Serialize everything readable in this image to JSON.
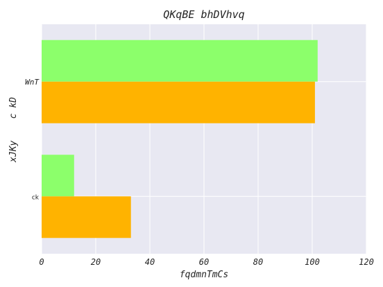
{
  "chart_data": {
    "type": "bar",
    "orientation": "horizontal",
    "title": "QKqBE bhDVhvq",
    "xlabel": "fqdmnTmCs",
    "ylabel": "xJKy    c kD",
    "categories": [
      "WnT",
      "ck"
    ],
    "series": [
      {
        "values": [
          102,
          12
        ],
        "color": "#8cff6b"
      },
      {
        "values": [
          101,
          33
        ],
        "color": "#ffb300"
      }
    ],
    "xlim": [
      0,
      120
    ],
    "xticks": [
      "0",
      "20",
      "40",
      "60",
      "80",
      "100",
      "120"
    ],
    "grid": true,
    "background": "#e8e8f2"
  }
}
